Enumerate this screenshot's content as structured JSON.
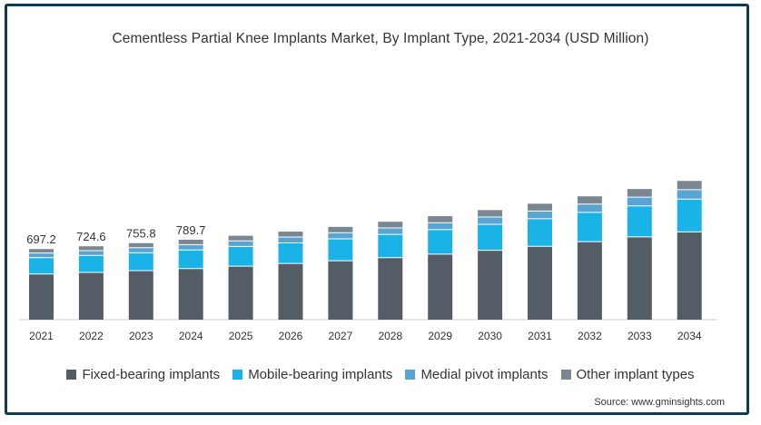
{
  "chart_data": {
    "type": "bar",
    "stacked": true,
    "title": "Cementless Partial Knee Implants Market, By Implant Type, 2021-2034 (USD Million)",
    "source": "Source: www.gminsights.com",
    "categories": [
      "2021",
      "2022",
      "2023",
      "2024",
      "2025",
      "2026",
      "2027",
      "2028",
      "2029",
      "2030",
      "2031",
      "2032",
      "2033",
      "2034"
    ],
    "totals_labels": [
      "697.2",
      "724.6",
      "755.8",
      "789.7",
      "",
      "",
      "",
      "",
      "",
      "",
      "",
      "",
      "",
      ""
    ],
    "series": [
      {
        "name": "Fixed-bearing implants",
        "color": "#545c66",
        "values": [
          450,
          466,
          484,
          504,
          528,
          554,
          581,
          612,
          646,
          684,
          724,
          769,
          816,
          866
        ]
      },
      {
        "name": "Mobile-bearing implants",
        "color": "#1ab3e8",
        "values": [
          162,
          168,
          176,
          184,
          194,
          203,
          216,
          229,
          242,
          257,
          272,
          290,
          306,
          324
        ]
      },
      {
        "name": "Medial pivot implants",
        "color": "#5aa4d4",
        "values": [
          45,
          47,
          50,
          52,
          55,
          58,
          61,
          64,
          68,
          72,
          76,
          81,
          86,
          92
        ]
      },
      {
        "name": "Other implant types",
        "color": "#7a8791",
        "values": [
          40,
          43,
          45,
          49,
          51,
          54,
          57,
          61,
          65,
          68,
          72,
          77,
          81,
          87
        ]
      }
    ],
    "ylim": [
      0,
      1500
    ],
    "grid": false,
    "legend_position": "bottom"
  }
}
